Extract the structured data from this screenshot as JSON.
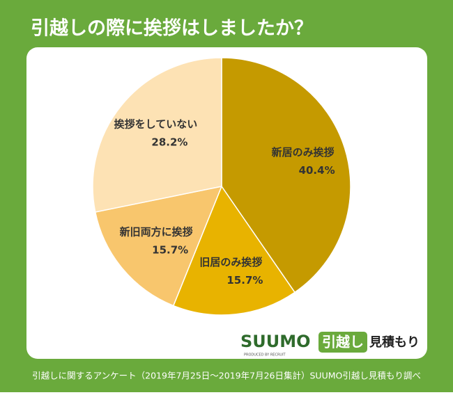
{
  "chart_data": {
    "type": "pie",
    "title": "引越しの際に挨拶はしましたか？",
    "categories": [
      "新居のみ挨拶",
      "旧居のみ挨拶",
      "新旧両方に挨拶",
      "挨拶をしていない"
    ],
    "values": [
      40.4,
      15.7,
      15.7,
      28.2
    ],
    "value_labels": [
      "40.4%",
      "15.7%",
      "15.7%",
      "28.2%"
    ],
    "colors": [
      "#c59a00",
      "#e8b300",
      "#f8c66d",
      "#fde2b4"
    ],
    "source": "引越しに関するアンケート（2019年7月25日～2019年7月26日集計）SUUMO引越し見積もり調べ"
  },
  "logo": {
    "brand": "SUUMO",
    "service": "引越し",
    "suffix": "見積もり",
    "producer": "PRODUCED BY RECRUIT"
  }
}
